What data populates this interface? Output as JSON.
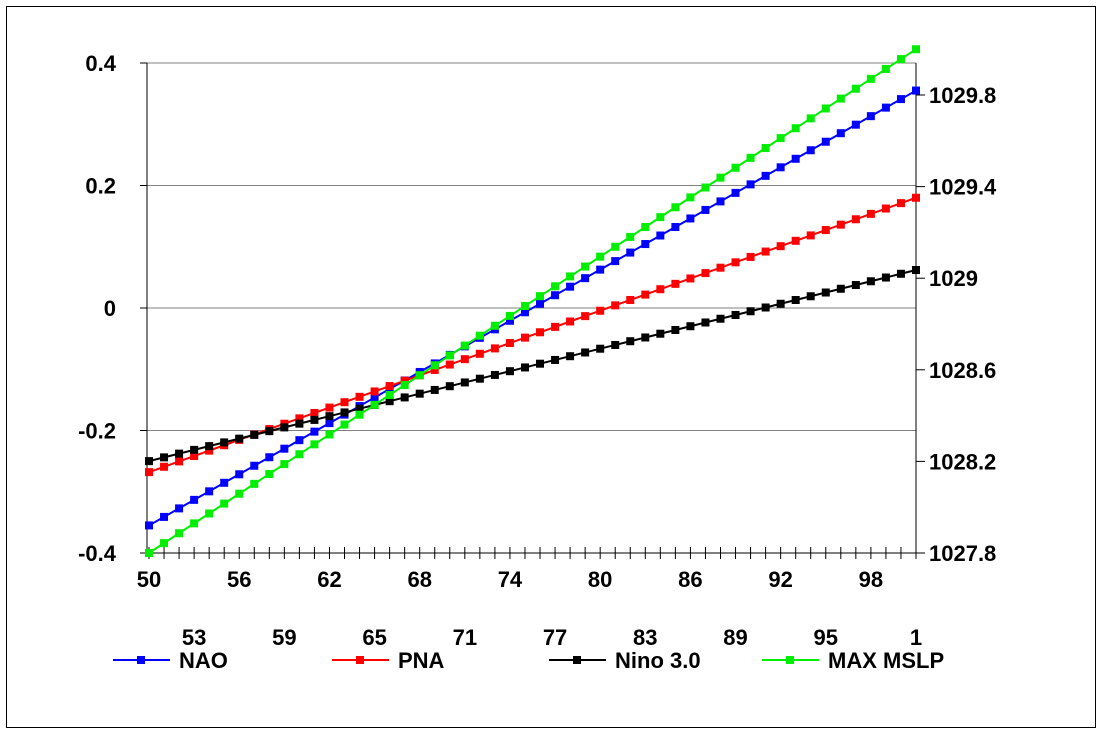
{
  "chart_data": {
    "type": "line",
    "x": [
      1950,
      1951,
      1952,
      1953,
      1954,
      1955,
      1956,
      1957,
      1958,
      1959,
      1960,
      1961,
      1962,
      1963,
      1964,
      1965,
      1966,
      1967,
      1968,
      1969,
      1970,
      1971,
      1972,
      1973,
      1974,
      1975,
      1976,
      1977,
      1978,
      1979,
      1980,
      1981,
      1982,
      1983,
      1984,
      1985,
      1986,
      1987,
      1988,
      1989,
      1990,
      1991,
      1992,
      1993,
      1994,
      1995,
      1996,
      1997,
      1998,
      1999,
      2000,
      2001
    ],
    "x_tick_labels": [
      "50",
      "53",
      "56",
      "59",
      "62",
      "65",
      "68",
      "71",
      "74",
      "77",
      "80",
      "83",
      "86",
      "89",
      "92",
      "95",
      "98",
      "1"
    ],
    "x_tick_years": [
      1950,
      1953,
      1956,
      1959,
      1962,
      1965,
      1968,
      1971,
      1974,
      1977,
      1980,
      1983,
      1986,
      1989,
      1992,
      1995,
      1998,
      2001
    ],
    "y_left": {
      "ylim": [
        -0.4,
        0.4
      ],
      "ticks": [
        "0.4",
        "0.2",
        "0",
        "-0.2",
        "-0.4"
      ],
      "tick_values": [
        0.4,
        0.2,
        0,
        -0.2,
        -0.4
      ]
    },
    "y_right": {
      "ylim": [
        1027.8,
        1030.1
      ],
      "ticks": [
        "1029.8",
        "1029.4",
        "1029",
        "1028.6",
        "1028.2",
        "1027.8"
      ],
      "tick_values": [
        1029.8,
        1029.4,
        1029.0,
        1028.6,
        1028.2,
        1027.8
      ]
    },
    "grid": "horizontal",
    "legend_position": "bottom",
    "series": [
      {
        "name": "NAO",
        "color": "#0000ff",
        "axis": "left",
        "start": -0.355,
        "end": 0.355
      },
      {
        "name": "PNA",
        "color": "#ff0000",
        "axis": "left",
        "start": -0.268,
        "end": 0.18
      },
      {
        "name": "Nino 3.0",
        "color": "#000000",
        "axis": "left",
        "start": -0.25,
        "end": 0.062
      },
      {
        "name": "MAX MSLP",
        "color": "#00ee00",
        "axis": "right",
        "start": 1027.8,
        "end": 1030.0
      }
    ]
  }
}
